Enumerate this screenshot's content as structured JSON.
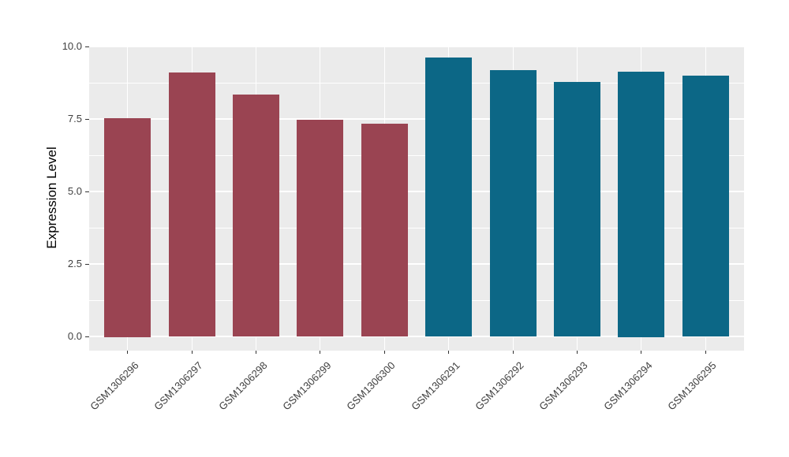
{
  "chart_data": {
    "type": "bar",
    "title": "",
    "xlabel": "",
    "ylabel": "Expression Level",
    "categories": [
      "GSM1306296",
      "GSM1306297",
      "GSM1306298",
      "GSM1306299",
      "GSM1306300",
      "GSM1306291",
      "GSM1306292",
      "GSM1306293",
      "GSM1306294",
      "GSM1306295"
    ],
    "values": [
      7.54,
      9.1,
      8.35,
      7.47,
      7.34,
      9.61,
      9.18,
      8.77,
      9.14,
      9.0
    ],
    "bar_colors": [
      "#9A4452",
      "#9A4452",
      "#9A4452",
      "#9A4452",
      "#9A4452",
      "#0C6786",
      "#0C6786",
      "#0C6786",
      "#0C6786",
      "#0C6786"
    ],
    "group_colors": {
      "left_group": "#9A4452",
      "right_group": "#0C6786"
    },
    "ylim": [
      0,
      10
    ],
    "panel_range": [
      -0.48,
      10.03
    ],
    "yticks": [
      0.0,
      2.5,
      5.0,
      7.5,
      10.0
    ],
    "ytick_labels": [
      "0.0",
      "2.5",
      "5.0",
      "7.5",
      "10.0"
    ],
    "y_minor_ticks": [
      1.25,
      3.75,
      6.25,
      8.75
    ],
    "grid": "major and minor horizontal white lines, vertical white line at each bar center",
    "legend": "none"
  },
  "style": {
    "figure_bg": "#FFFFFF",
    "panel_bg": "#EBEBEB",
    "grid_color": "#FFFFFF",
    "tick_color": "#333333",
    "tick_label_color": "#404040",
    "axis_title_color": "#000000"
  }
}
